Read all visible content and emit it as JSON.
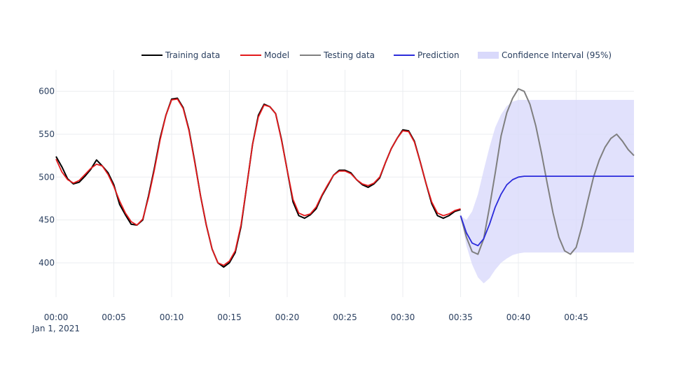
{
  "chart_data": {
    "type": "line",
    "title": "",
    "xlabel": "",
    "ylabel": "",
    "x_unit": "minutes",
    "xlim": [
      0,
      50
    ],
    "ylim": [
      360,
      625
    ],
    "x_ticks": [
      {
        "value": 0,
        "label": "00:00"
      },
      {
        "value": 5,
        "label": "00:05"
      },
      {
        "value": 10,
        "label": "00:10"
      },
      {
        "value": 15,
        "label": "00:15"
      },
      {
        "value": 20,
        "label": "00:20"
      },
      {
        "value": 25,
        "label": "00:25"
      },
      {
        "value": 30,
        "label": "00:30"
      },
      {
        "value": 35,
        "label": "00:35"
      },
      {
        "value": 40,
        "label": "00:40"
      },
      {
        "value": 45,
        "label": "00:45"
      }
    ],
    "x_date_label": "Jan 1, 2021",
    "y_ticks": [
      400,
      450,
      500,
      550,
      600
    ],
    "grid": true,
    "legend_position": "top-right",
    "series": [
      {
        "name": "Training data",
        "color": "#000000",
        "x": [
          0,
          0.5,
          1,
          1.5,
          2,
          2.5,
          3,
          3.5,
          4,
          4.5,
          5,
          5.5,
          6,
          6.5,
          7,
          7.5,
          8,
          8.5,
          9,
          9.5,
          10,
          10.5,
          11,
          11.5,
          12,
          12.5,
          13,
          13.5,
          14,
          14.5,
          15,
          15.5,
          16,
          16.5,
          17,
          17.5,
          18,
          18.5,
          19,
          19.5,
          20,
          20.5,
          21,
          21.5,
          22,
          22.5,
          23,
          23.5,
          24,
          24.5,
          25,
          25.5,
          26,
          26.5,
          27,
          27.5,
          28,
          28.5,
          29,
          29.5,
          30,
          30.5,
          31,
          31.5,
          32,
          32.5,
          33,
          33.5,
          34,
          34.5,
          35
        ],
        "y": [
          524,
          512,
          498,
          492,
          494,
          501,
          509,
          520,
          513,
          505,
          491,
          468,
          456,
          445,
          444,
          450,
          478,
          510,
          545,
          572,
          591,
          592,
          581,
          555,
          518,
          478,
          444,
          416,
          400,
          395,
          400,
          412,
          442,
          490,
          538,
          572,
          585,
          582,
          574,
          544,
          508,
          471,
          455,
          452,
          456,
          463,
          478,
          490,
          502,
          508,
          508,
          505,
          497,
          491,
          488,
          492,
          499,
          517,
          533,
          545,
          555,
          554,
          542,
          518,
          493,
          469,
          455,
          452,
          455,
          460,
          462
        ]
      },
      {
        "name": "Model",
        "color": "#e31a1c",
        "x": [
          0,
          0.5,
          1,
          1.5,
          2,
          2.5,
          3,
          3.5,
          4,
          4.5,
          5,
          5.5,
          6,
          6.5,
          7,
          7.5,
          8,
          8.5,
          9,
          9.5,
          10,
          10.5,
          11,
          11.5,
          12,
          12.5,
          13,
          13.5,
          14,
          14.5,
          15,
          15.5,
          16,
          16.5,
          17,
          17.5,
          18,
          18.5,
          19,
          19.5,
          20,
          20.5,
          21,
          21.5,
          22,
          22.5,
          23,
          23.5,
          24,
          24.5,
          25,
          25.5,
          26,
          26.5,
          27,
          27.5,
          28,
          28.5,
          29,
          29.5,
          30,
          30.5,
          31,
          31.5,
          32,
          32.5,
          33,
          33.5,
          34,
          34.5,
          35
        ],
        "y": [
          521,
          506,
          497,
          493,
          496,
          503,
          510,
          515,
          513,
          503,
          489,
          472,
          458,
          448,
          444,
          451,
          476,
          508,
          543,
          572,
          590,
          591,
          580,
          554,
          517,
          478,
          444,
          416,
          400,
          397,
          402,
          414,
          444,
          490,
          538,
          570,
          584,
          582,
          574,
          543,
          508,
          474,
          458,
          455,
          457,
          465,
          479,
          491,
          502,
          507,
          507,
          504,
          497,
          492,
          490,
          493,
          500,
          517,
          533,
          545,
          554,
          553,
          541,
          518,
          493,
          471,
          458,
          455,
          457,
          461,
          463
        ]
      },
      {
        "name": "Testing data",
        "color": "#7f7f7f",
        "x": [
          35,
          35.5,
          36,
          36.5,
          37,
          37.5,
          38,
          38.5,
          39,
          39.5,
          40,
          40.5,
          41,
          41.5,
          42,
          42.5,
          43,
          43.5,
          44,
          44.5,
          45,
          45.5,
          46,
          46.5,
          47,
          47.5,
          48,
          48.5,
          49,
          49.5,
          50
        ],
        "y": [
          455,
          430,
          413,
          410,
          428,
          465,
          505,
          548,
          575,
          592,
          603,
          600,
          585,
          560,
          528,
          492,
          458,
          430,
          414,
          410,
          418,
          443,
          472,
          500,
          520,
          535,
          545,
          550,
          542,
          532,
          525
        ]
      },
      {
        "name": "Prediction",
        "color": "#2b2bdb",
        "x": [
          35,
          35.5,
          36,
          36.5,
          37,
          37.5,
          38,
          38.5,
          39,
          39.5,
          40,
          40.5,
          41,
          41.5,
          42,
          42.5,
          43,
          43.5,
          44,
          44.5,
          45,
          45.5,
          46,
          46.5,
          47,
          47.5,
          48,
          48.5,
          49,
          49.5,
          50
        ],
        "y": [
          455,
          435,
          423,
          420,
          428,
          445,
          465,
          480,
          491,
          497,
          500,
          501,
          501,
          501,
          501,
          501,
          501,
          501,
          501,
          501,
          501,
          501,
          501,
          501,
          501,
          501,
          501,
          501,
          501,
          501,
          501
        ]
      },
      {
        "name": "Confidence Interval (95%)",
        "color": "#d9d9fb",
        "x": [
          35,
          35.5,
          36,
          36.5,
          37,
          37.5,
          38,
          38.5,
          39,
          39.5,
          40,
          40.5,
          41,
          41.5,
          42,
          42.5,
          43,
          43.5,
          44,
          44.5,
          45,
          45.5,
          46,
          46.5,
          47,
          47.5,
          48,
          48.5,
          49,
          49.5,
          50
        ],
        "lower": [
          455,
          420,
          398,
          383,
          376,
          382,
          392,
          400,
          405,
          409,
          411,
          412,
          412,
          412,
          412,
          412,
          412,
          412,
          412,
          412,
          412,
          412,
          412,
          412,
          412,
          412,
          412,
          412,
          412,
          412,
          412
        ],
        "upper": [
          455,
          450,
          460,
          480,
          508,
          535,
          558,
          573,
          583,
          588,
          590,
          590,
          590,
          590,
          590,
          590,
          590,
          590,
          590,
          590,
          590,
          590,
          590,
          590,
          590,
          590,
          590,
          590,
          590,
          590,
          590
        ]
      }
    ]
  }
}
